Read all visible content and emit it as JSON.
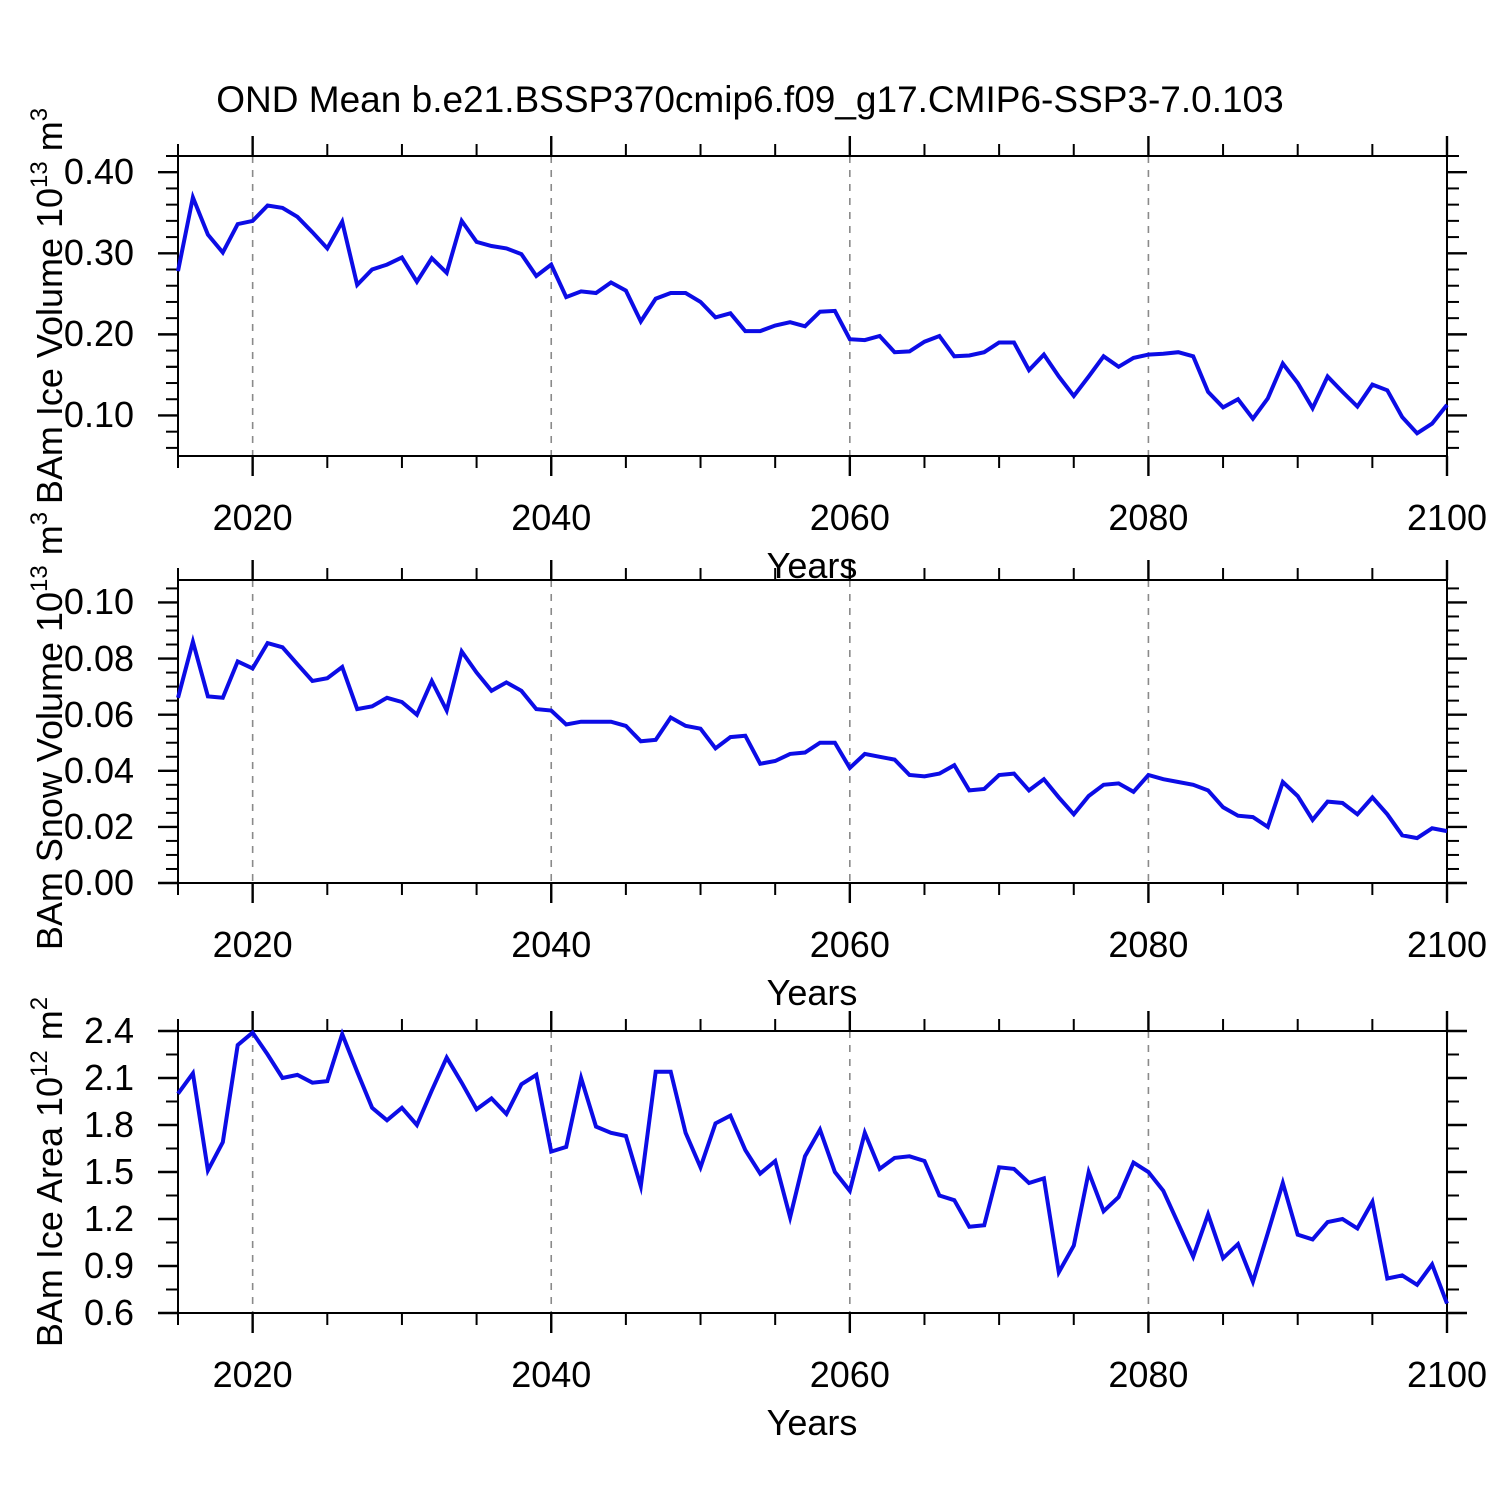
{
  "title": "OND Mean b.e21.BSSP370cmip6.f09_g17.CMIP6-SSP3-7.0.103",
  "xaxis_title": "Years",
  "colors": {
    "line": "#0c0ce6",
    "grid": "#8a8a8a",
    "frame": "#000000"
  },
  "chart_data": {
    "type": "line",
    "title": "OND Mean b.e21.BSSP370cmip6.f09_g17.CMIP6-SSP3-7.0.103",
    "xlabel": "Years",
    "x_range": [
      2015,
      2100
    ],
    "x_tick_years": [
      2020,
      2040,
      2060,
      2080,
      2100
    ],
    "x_tick_labels": [
      "2020",
      "2040",
      "2060",
      "2080",
      "2100"
    ],
    "x_minor_step": 5,
    "gridline_years": [
      2020,
      2040,
      2060,
      2080
    ],
    "grid_style": "dashed-vertical",
    "legend": "none",
    "x": [
      2015,
      2016,
      2017,
      2018,
      2019,
      2020,
      2021,
      2022,
      2023,
      2024,
      2025,
      2026,
      2027,
      2028,
      2029,
      2030,
      2031,
      2032,
      2033,
      2034,
      2035,
      2036,
      2037,
      2038,
      2039,
      2040,
      2041,
      2042,
      2043,
      2044,
      2045,
      2046,
      2047,
      2048,
      2049,
      2050,
      2051,
      2052,
      2053,
      2054,
      2055,
      2056,
      2057,
      2058,
      2059,
      2060,
      2061,
      2062,
      2063,
      2064,
      2065,
      2066,
      2067,
      2068,
      2069,
      2070,
      2071,
      2072,
      2073,
      2074,
      2075,
      2076,
      2077,
      2078,
      2079,
      2080,
      2081,
      2082,
      2083,
      2084,
      2085,
      2086,
      2087,
      2088,
      2089,
      2090,
      2091,
      2092,
      2093,
      2094,
      2095,
      2096,
      2097,
      2098,
      2099,
      2100
    ],
    "panels": [
      {
        "name": "ice-volume",
        "ylabel_text": "BAm Ice Volume 10^13 m^3",
        "title_parts": {
          "base": "BAm Ice Volume 10",
          "exp": "13",
          "unit": " m",
          "unit_exp": "3"
        },
        "ylim": [
          0.05,
          0.42
        ],
        "ytick_values": [
          0.1,
          0.2,
          0.3,
          0.4
        ],
        "ytick_labels": [
          "0.10",
          "0.20",
          "0.30",
          "0.40"
        ],
        "y_minor_step": 0.02,
        "values": [
          0.278,
          0.369,
          0.323,
          0.301,
          0.336,
          0.34,
          0.359,
          0.356,
          0.345,
          0.326,
          0.306,
          0.339,
          0.261,
          0.28,
          0.286,
          0.295,
          0.265,
          0.294,
          0.276,
          0.34,
          0.314,
          0.309,
          0.306,
          0.299,
          0.272,
          0.286,
          0.246,
          0.253,
          0.251,
          0.264,
          0.254,
          0.216,
          0.244,
          0.251,
          0.251,
          0.24,
          0.221,
          0.226,
          0.204,
          0.204,
          0.211,
          0.215,
          0.21,
          0.228,
          0.229,
          0.194,
          0.193,
          0.198,
          0.178,
          0.179,
          0.191,
          0.198,
          0.173,
          0.174,
          0.178,
          0.19,
          0.19,
          0.156,
          0.175,
          0.148,
          0.124,
          0.148,
          0.173,
          0.16,
          0.171,
          0.175,
          0.176,
          0.178,
          0.173,
          0.129,
          0.11,
          0.12,
          0.096,
          0.121,
          0.164,
          0.14,
          0.109,
          0.148,
          0.129,
          0.111,
          0.138,
          0.131,
          0.098,
          0.078,
          0.09,
          0.113
        ]
      },
      {
        "name": "snow-volume",
        "ylabel_text": "BAm Snow Volume 10^13 m^3",
        "title_parts": {
          "base": "BAm Snow Volume 10",
          "exp": "13",
          "unit": " m",
          "unit_exp": "3"
        },
        "ylim": [
          0.0,
          0.108
        ],
        "ytick_values": [
          0.0,
          0.02,
          0.04,
          0.06,
          0.08,
          0.1
        ],
        "ytick_labels": [
          "0.00",
          "0.02",
          "0.04",
          "0.06",
          "0.08",
          "0.10"
        ],
        "y_minor_step": 0.005,
        "values": [
          0.066,
          0.086,
          0.0665,
          0.066,
          0.079,
          0.0765,
          0.0855,
          0.084,
          0.078,
          0.072,
          0.073,
          0.077,
          0.062,
          0.063,
          0.066,
          0.0645,
          0.06,
          0.072,
          0.0615,
          0.0825,
          0.075,
          0.0685,
          0.0715,
          0.0685,
          0.062,
          0.0615,
          0.0565,
          0.0575,
          0.0575,
          0.0575,
          0.056,
          0.0505,
          0.051,
          0.059,
          0.056,
          0.055,
          0.048,
          0.052,
          0.0525,
          0.0425,
          0.0435,
          0.046,
          0.0465,
          0.05,
          0.05,
          0.041,
          0.046,
          0.045,
          0.044,
          0.0385,
          0.038,
          0.039,
          0.042,
          0.033,
          0.0335,
          0.0385,
          0.039,
          0.033,
          0.037,
          0.0305,
          0.0245,
          0.031,
          0.035,
          0.0355,
          0.0325,
          0.0385,
          0.037,
          0.036,
          0.035,
          0.033,
          0.027,
          0.024,
          0.0235,
          0.02,
          0.036,
          0.031,
          0.0225,
          0.029,
          0.0285,
          0.0245,
          0.0305,
          0.0245,
          0.017,
          0.016,
          0.0195,
          0.0185
        ]
      },
      {
        "name": "ice-area",
        "ylabel_text": "BAm Ice Area 10^12 m^2",
        "title_parts": {
          "base": "BAm Ice Area 10",
          "exp": "12",
          "unit": " m",
          "unit_exp": "2"
        },
        "ylim": [
          0.6,
          2.4
        ],
        "ytick_values": [
          0.6,
          0.9,
          1.2,
          1.5,
          1.8,
          2.1,
          2.4
        ],
        "ytick_labels": [
          "0.6",
          "0.9",
          "1.2",
          "1.5",
          "1.8",
          "2.1",
          "2.4"
        ],
        "y_minor_step": 0.15,
        "values": [
          2.0,
          2.13,
          1.51,
          1.69,
          2.31,
          2.39,
          2.25,
          2.1,
          2.12,
          2.07,
          2.08,
          2.38,
          2.14,
          1.91,
          1.83,
          1.91,
          1.8,
          2.02,
          2.23,
          2.07,
          1.9,
          1.97,
          1.87,
          2.06,
          2.12,
          1.63,
          1.66,
          2.1,
          1.79,
          1.75,
          1.73,
          1.41,
          2.14,
          2.14,
          1.75,
          1.53,
          1.81,
          1.86,
          1.64,
          1.49,
          1.57,
          1.21,
          1.6,
          1.77,
          1.5,
          1.38,
          1.75,
          1.52,
          1.59,
          1.6,
          1.57,
          1.35,
          1.32,
          1.15,
          1.16,
          1.53,
          1.52,
          1.43,
          1.46,
          0.86,
          1.03,
          1.5,
          1.25,
          1.34,
          1.56,
          1.5,
          1.38,
          1.17,
          0.96,
          1.23,
          0.95,
          1.04,
          0.8,
          1.11,
          1.43,
          1.1,
          1.07,
          1.18,
          1.2,
          1.14,
          1.31,
          0.82,
          0.84,
          0.78,
          0.91,
          0.66
        ]
      }
    ]
  }
}
